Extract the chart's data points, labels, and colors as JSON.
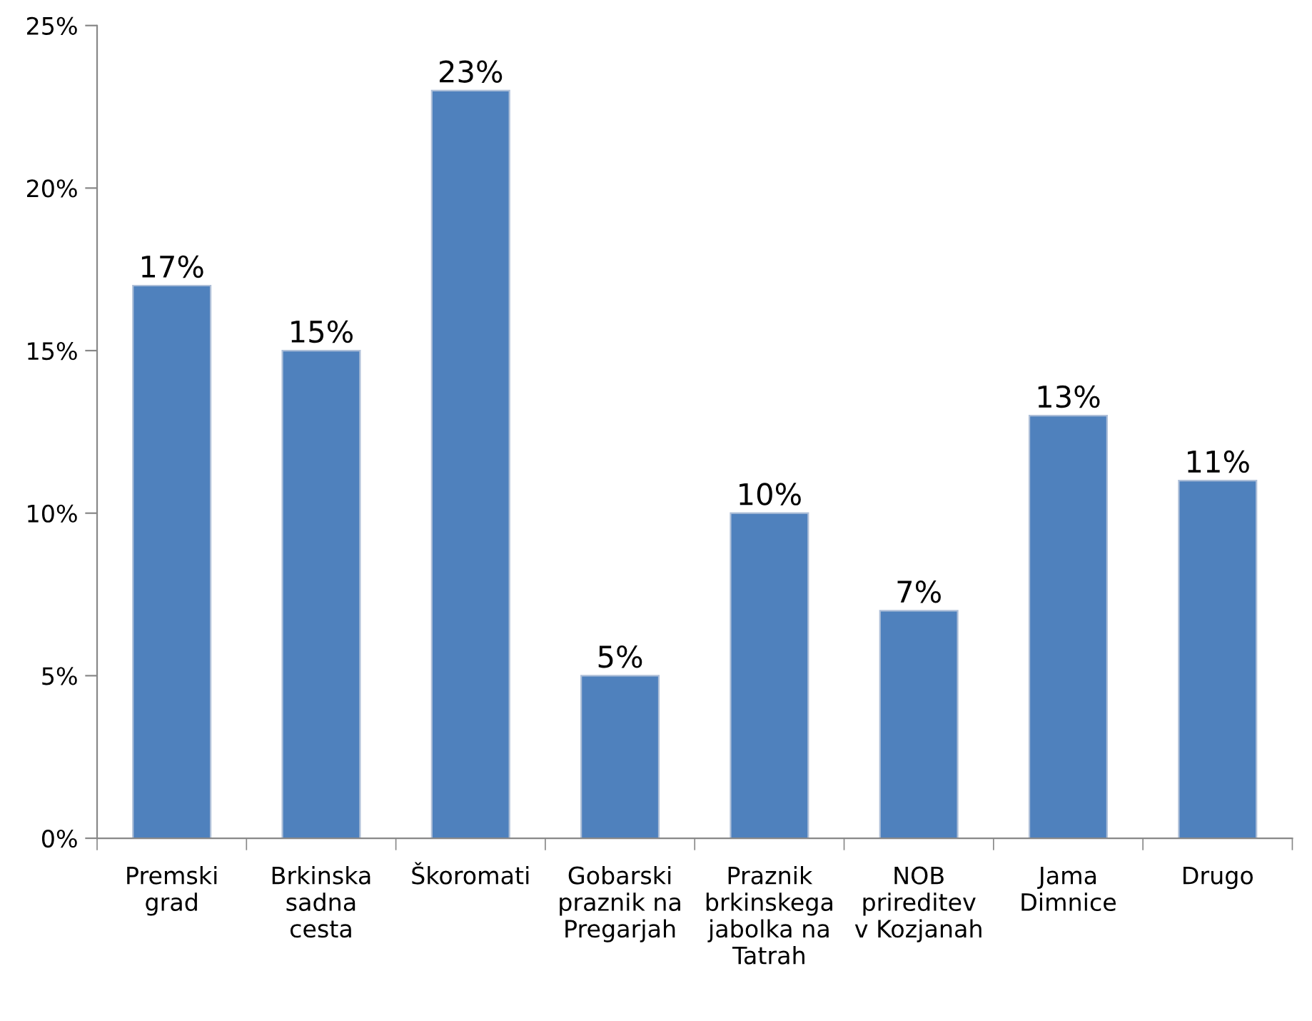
{
  "chart_data": {
    "type": "bar",
    "categories": [
      "Premski\ngrad",
      "Brkinska\nsadna\ncesta",
      "Škoromati",
      "Gobarski\npraznik na\nPregarjah",
      "Praznik\nbrkinskega\njabolka na\nTatrah",
      "NOB\nprireditev\nv Kozjanah",
      "Jama\nDimnice",
      "Drugo"
    ],
    "values": [
      17,
      15,
      23,
      5,
      10,
      7,
      13,
      11
    ],
    "value_labels": [
      "17%",
      "15%",
      "23%",
      "5%",
      "10%",
      "7%",
      "13%",
      "11%"
    ],
    "color": "#4f81bd",
    "ylim": [
      0,
      25
    ],
    "yticks": [
      {
        "value": 0,
        "label": "0%"
      },
      {
        "value": 5,
        "label": "5%"
      },
      {
        "value": 10,
        "label": "10%"
      },
      {
        "value": 15,
        "label": "15%"
      },
      {
        "value": 20,
        "label": "20%"
      },
      {
        "value": 25,
        "label": "25%"
      }
    ],
    "grid": false,
    "legend": false
  }
}
